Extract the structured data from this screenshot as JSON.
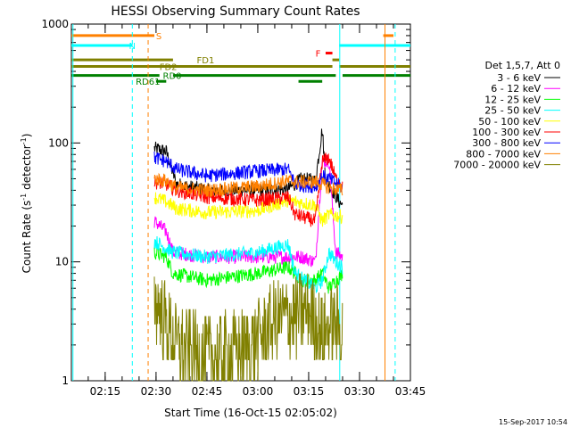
{
  "chart_data": {
    "type": "line",
    "title": "HESSI Observing Summary Count Rates",
    "xlabel": "Start Time (16-Oct-15 02:05:02)",
    "ylabel_parts": {
      "prefix": "Count Rate (s",
      "sup1": "-1",
      "middle": " detector",
      "sup2": "-1",
      "suffix": ")"
    },
    "y_scale": "log",
    "ylim": [
      1,
      1000
    ],
    "y_ticks": [
      {
        "value": 1,
        "label": "1"
      },
      {
        "value": 10,
        "label": "10"
      },
      {
        "value": 100,
        "label": "100"
      },
      {
        "value": 1000,
        "label": "1000"
      }
    ],
    "xlim": [
      "02:05:02",
      "03:45:00"
    ],
    "x_ticks": [
      {
        "value": "02:15",
        "label": "02:15"
      },
      {
        "value": "02:30",
        "label": "02:30"
      },
      {
        "value": "02:45",
        "label": "02:45"
      },
      {
        "value": "03:00",
        "label": "03:00"
      },
      {
        "value": "03:15",
        "label": "03:15"
      },
      {
        "value": "03:30",
        "label": "03:30"
      },
      {
        "value": "03:45",
        "label": "03:45"
      }
    ],
    "legend_title": "Det 1,5,7, Att 0",
    "legend_position": "right",
    "series": [
      {
        "name": "3 - 6 keV",
        "color": "#000000",
        "points": [
          [
            "02:29:30",
            90
          ],
          [
            "02:33",
            85
          ],
          [
            "02:36",
            45
          ],
          [
            "02:45",
            40
          ],
          [
            "03:00",
            40
          ],
          [
            "03:09",
            41
          ],
          [
            "03:13",
            50
          ],
          [
            "03:17",
            48
          ],
          [
            "03:19",
            130
          ],
          [
            "03:20",
            50
          ],
          [
            "03:24",
            32
          ],
          [
            "03:25",
            30
          ]
        ]
      },
      {
        "name": "6 - 12 keV",
        "color": "#ff00ff",
        "points": [
          [
            "02:29:30",
            22
          ],
          [
            "02:33",
            18
          ],
          [
            "02:35",
            12
          ],
          [
            "02:45",
            11
          ],
          [
            "03:00",
            11
          ],
          [
            "03:09",
            11
          ],
          [
            "03:13",
            11
          ],
          [
            "03:17",
            10
          ],
          [
            "03:19",
            70
          ],
          [
            "03:21",
            70
          ],
          [
            "03:23",
            12
          ],
          [
            "03:25",
            11
          ]
        ]
      },
      {
        "name": "12 - 25 keV",
        "color": "#00ff00",
        "points": [
          [
            "02:29:30",
            12
          ],
          [
            "02:33",
            11
          ],
          [
            "02:35",
            8
          ],
          [
            "02:45",
            7
          ],
          [
            "03:00",
            8
          ],
          [
            "03:09",
            9
          ],
          [
            "03:11",
            8
          ],
          [
            "03:13",
            7
          ],
          [
            "03:17",
            7
          ],
          [
            "03:19",
            8
          ],
          [
            "03:21",
            6
          ],
          [
            "03:25",
            8
          ]
        ]
      },
      {
        "name": "25 - 50 keV",
        "color": "#00ffff",
        "points": [
          [
            "02:29:30",
            15
          ],
          [
            "02:33",
            13
          ],
          [
            "02:35",
            12
          ],
          [
            "02:45",
            11
          ],
          [
            "03:00",
            12
          ],
          [
            "03:09",
            14
          ],
          [
            "03:11",
            8
          ],
          [
            "03:17",
            6
          ],
          [
            "03:19",
            7
          ],
          [
            "03:21",
            12
          ],
          [
            "03:23",
            10
          ],
          [
            "03:25",
            9
          ]
        ]
      },
      {
        "name": "50 - 100 keV",
        "color": "#ffff00",
        "points": [
          [
            "02:29:30",
            35
          ],
          [
            "02:33",
            32
          ],
          [
            "02:36",
            28
          ],
          [
            "02:45",
            26
          ],
          [
            "03:00",
            27
          ],
          [
            "03:09",
            33
          ],
          [
            "03:11",
            32
          ],
          [
            "03:17",
            30
          ],
          [
            "03:19",
            22
          ],
          [
            "03:21",
            25
          ],
          [
            "03:25",
            24
          ]
        ]
      },
      {
        "name": "100 - 300 keV",
        "color": "#ff0000",
        "points": [
          [
            "02:29:30",
            47
          ],
          [
            "02:33",
            45
          ],
          [
            "02:36",
            40
          ],
          [
            "02:45",
            35
          ],
          [
            "03:00",
            33
          ],
          [
            "03:09",
            35
          ],
          [
            "03:11",
            25
          ],
          [
            "03:17",
            22
          ],
          [
            "03:19",
            70
          ],
          [
            "03:21",
            75
          ],
          [
            "03:23",
            50
          ],
          [
            "03:25",
            45
          ]
        ]
      },
      {
        "name": "300 - 800 keV",
        "color": "#0000ff",
        "points": [
          [
            "02:29:30",
            75
          ],
          [
            "02:33",
            70
          ],
          [
            "02:36",
            60
          ],
          [
            "02:45",
            53
          ],
          [
            "03:00",
            58
          ],
          [
            "03:09",
            60
          ],
          [
            "03:11",
            45
          ],
          [
            "03:17",
            43
          ],
          [
            "03:19",
            52
          ],
          [
            "03:21",
            50
          ],
          [
            "03:25",
            42
          ]
        ]
      },
      {
        "name": "800 - 7000 keV",
        "color": "#ff8000",
        "points": [
          [
            "02:29:30",
            50
          ],
          [
            "02:33",
            48
          ],
          [
            "02:36",
            42
          ],
          [
            "02:45",
            40
          ],
          [
            "03:00",
            43
          ],
          [
            "03:09",
            48
          ],
          [
            "03:11",
            47
          ],
          [
            "03:17",
            47
          ],
          [
            "03:19",
            45
          ],
          [
            "03:21",
            42
          ],
          [
            "03:25",
            40
          ]
        ]
      },
      {
        "name": "7000 - 20000 keV",
        "color": "#808000",
        "points": [
          [
            "02:29:30",
            5
          ],
          [
            "02:31",
            4
          ],
          [
            "02:33",
            3
          ],
          [
            "02:36",
            2
          ],
          [
            "02:45",
            1.6
          ],
          [
            "02:55",
            1.8
          ],
          [
            "03:00",
            2.2
          ],
          [
            "03:05",
            3.2
          ],
          [
            "03:09",
            3.6
          ],
          [
            "03:11",
            3.5
          ],
          [
            "03:15",
            4
          ],
          [
            "03:19",
            2.5
          ],
          [
            "03:23",
            3
          ],
          [
            "03:25",
            2.5
          ]
        ]
      }
    ],
    "hline_flags": [
      {
        "name": "S",
        "color": "#ff8000",
        "level": 800,
        "segments": [
          [
            "02:05:02",
            "02:29:30"
          ],
          [
            "03:37",
            "03:40"
          ]
        ],
        "label": "S",
        "label_at": "02:30"
      },
      {
        "name": "N",
        "color": "#00ffff",
        "level": 660,
        "segments": [
          [
            "02:05:02",
            "02:23"
          ],
          [
            "03:24",
            "03:45:00"
          ]
        ],
        "label": "N",
        "label_at": "02:22"
      },
      {
        "name": "F",
        "color": "#ff0000",
        "level": 570,
        "segments": [
          [
            "03:20",
            "03:22"
          ]
        ],
        "label": "F",
        "label_at": "03:17"
      },
      {
        "name": "FD1",
        "color": "#808000",
        "level": 500,
        "segments": [
          [
            "02:05:02",
            "02:35"
          ],
          [
            "03:22",
            "03:24"
          ]
        ],
        "label": "FD1",
        "label_at": "02:42"
      },
      {
        "name": "FD2",
        "color": "#808000",
        "level": 440,
        "segments": [
          [
            "02:05:02",
            "02:32"
          ],
          [
            "02:32",
            "03:22"
          ],
          [
            "03:24",
            "03:45:00"
          ]
        ],
        "label": "FD2",
        "label_at": "02:31"
      },
      {
        "name": "RD0",
        "color": "#008000",
        "level": 370,
        "segments": [
          [
            "02:05:02",
            "02:31"
          ],
          [
            "02:35",
            "03:23"
          ],
          [
            "03:25",
            "03:45:00"
          ]
        ],
        "label": "RD0",
        "label_at": "02:32"
      },
      {
        "name": "RD61",
        "color": "#008000",
        "level": 330,
        "segments": [
          [
            "02:30",
            "02:33"
          ],
          [
            "03:12",
            "03:19"
          ]
        ],
        "label": "RD61",
        "label_at": "02:24"
      }
    ],
    "vlines": [
      {
        "at": "02:05:30",
        "color": "#00ffff",
        "style": "solid"
      },
      {
        "at": "02:23:00",
        "color": "#00ffff",
        "style": "dashed"
      },
      {
        "at": "02:27:40",
        "color": "#ff8000",
        "style": "dashed"
      },
      {
        "at": "03:24:10",
        "color": "#00ffff",
        "style": "solid"
      },
      {
        "at": "03:37:30",
        "color": "#ff8000",
        "style": "solid"
      },
      {
        "at": "03:40:30",
        "color": "#00ffff",
        "style": "dashed"
      }
    ]
  },
  "footer": {
    "date_label": "15-Sep-2017 10:54"
  }
}
